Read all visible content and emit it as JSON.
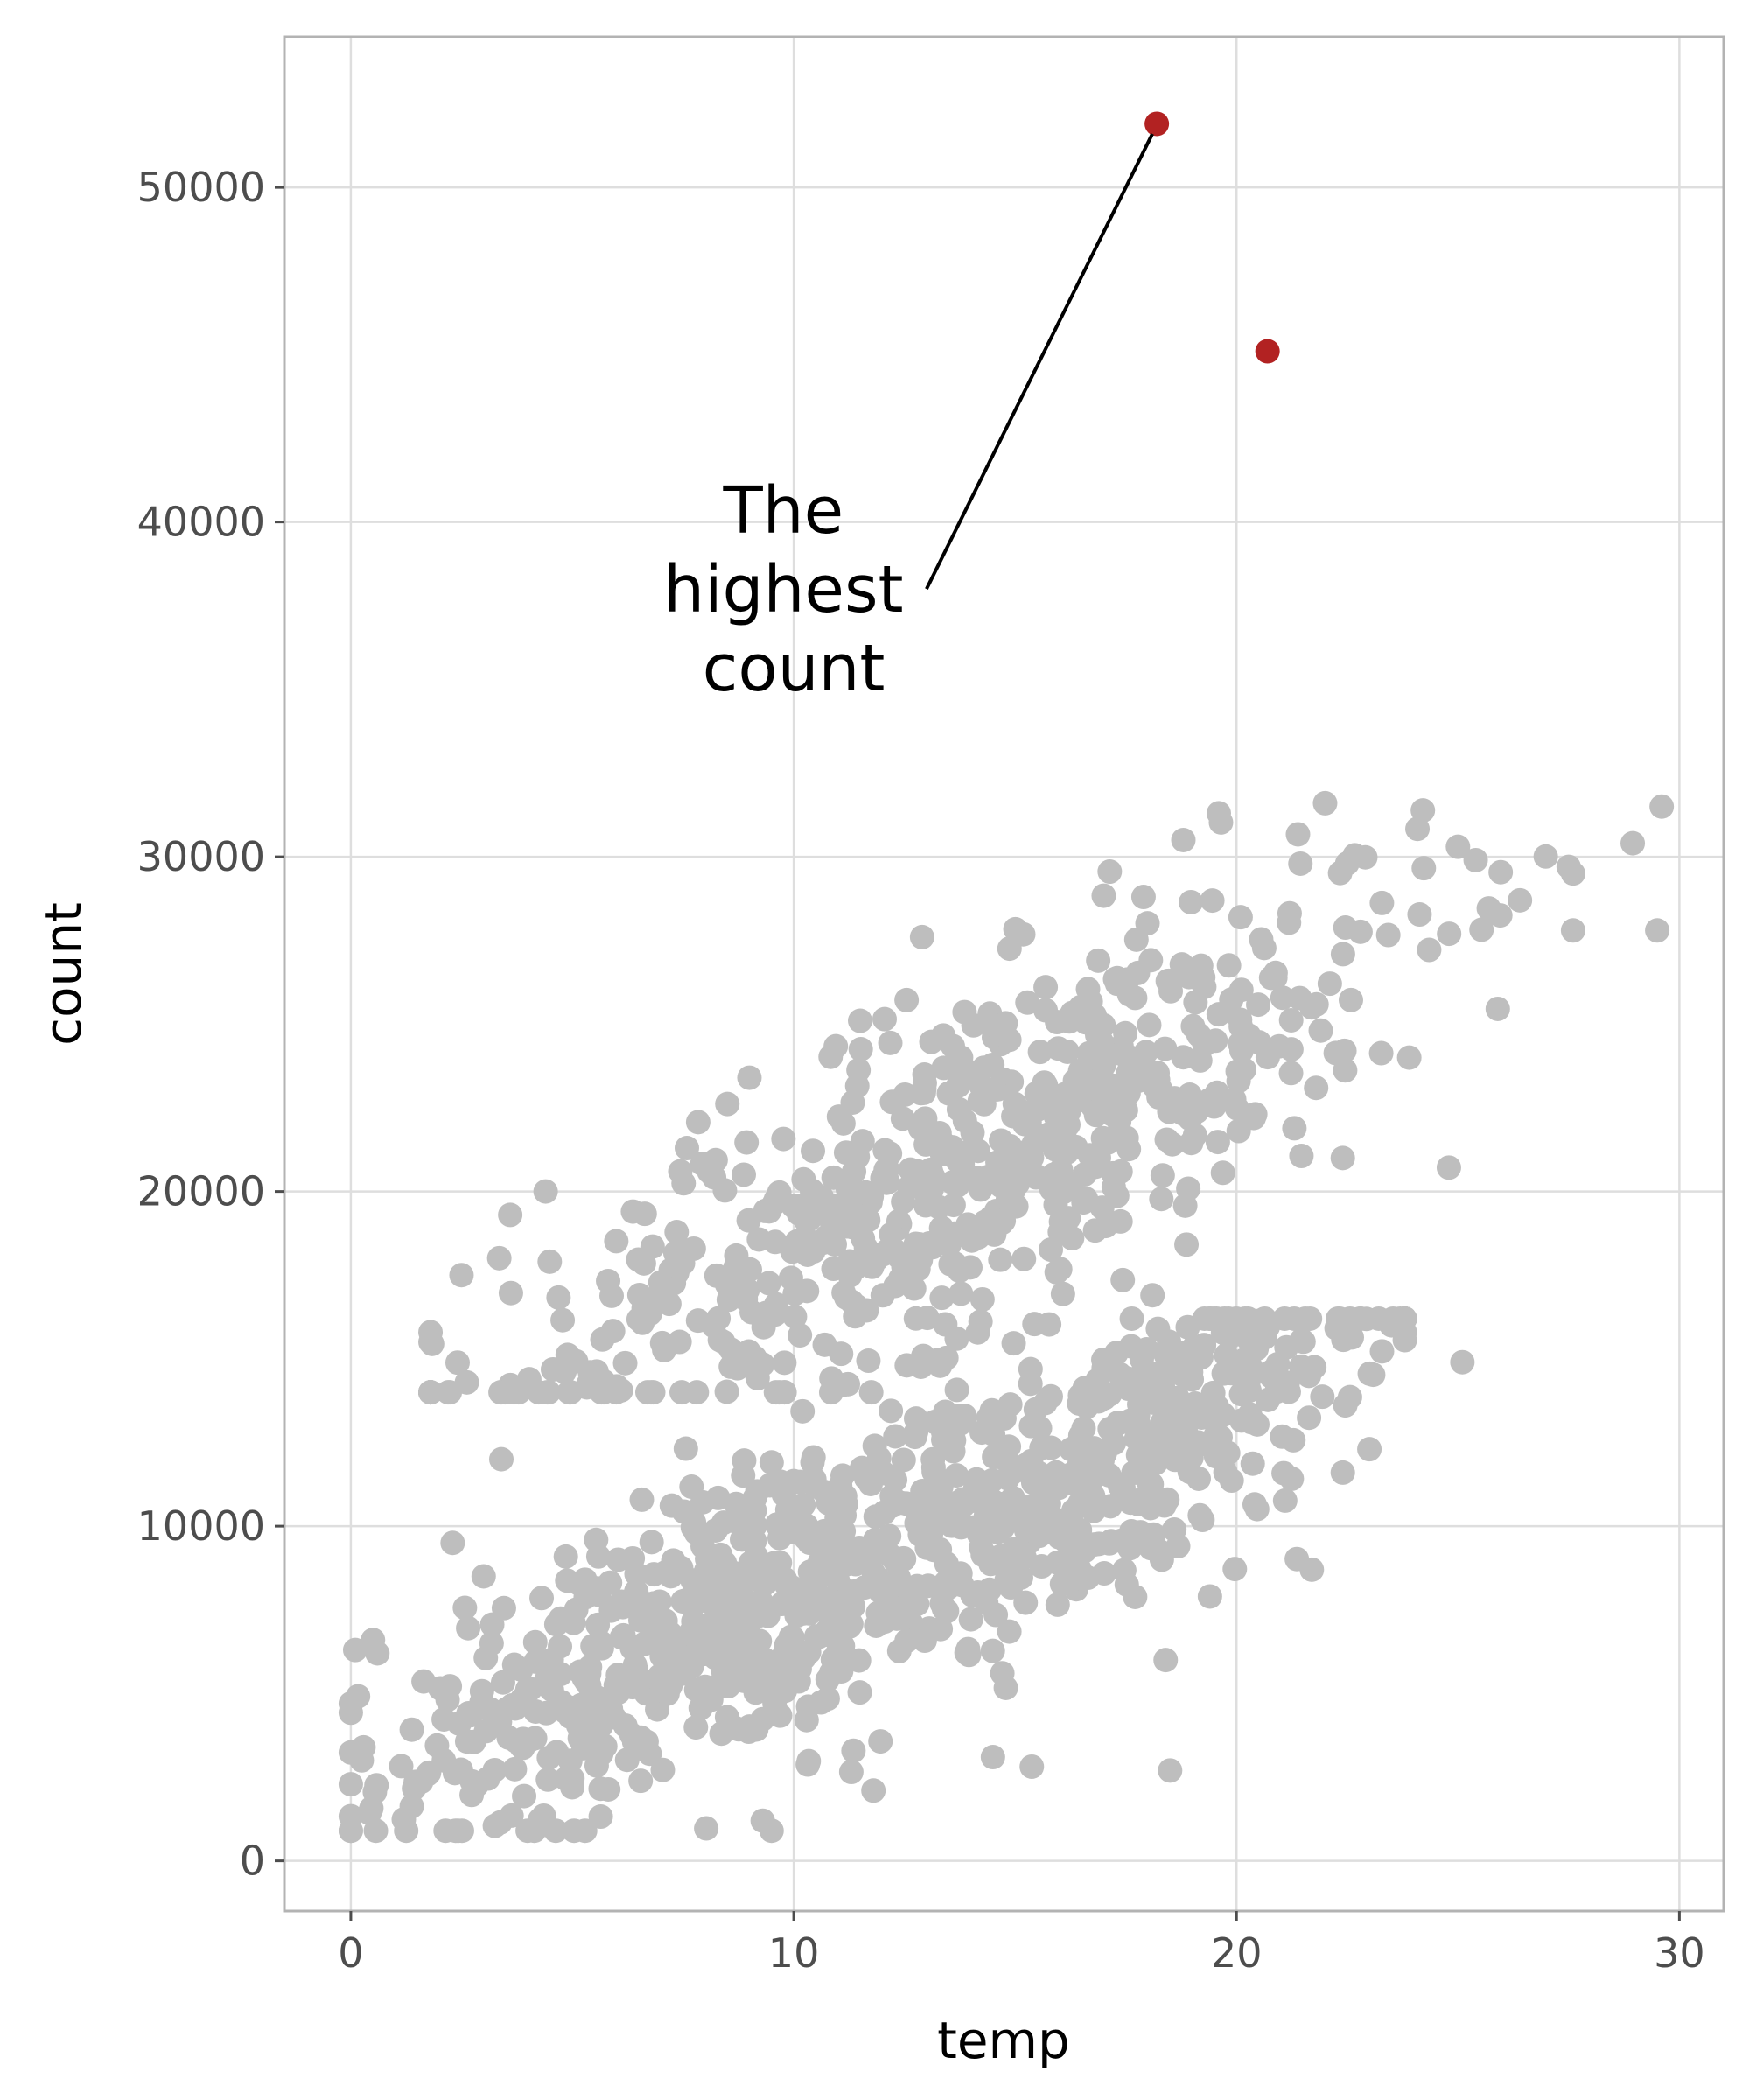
{
  "chart_data": {
    "type": "scatter",
    "title": "",
    "xlabel": "temp",
    "ylabel": "count",
    "xlim": [
      -1.5,
      31
    ],
    "ylim": [
      -1500,
      54500
    ],
    "x_ticks": [
      0,
      10,
      20,
      30
    ],
    "y_ticks": [
      0,
      10000,
      20000,
      30000,
      40000,
      50000
    ],
    "x_tick_labels": [
      "0",
      "10",
      "20",
      "30"
    ],
    "y_tick_labels": [
      "0",
      "10000",
      "20000",
      "30000",
      "40000",
      "50000"
    ],
    "grid": true,
    "legend": "none",
    "colors": {
      "background_points": "#bebebe",
      "highlight_points": "#b22222",
      "grid": "#dedede",
      "panel_border": "#b3b3b3"
    },
    "highlighted_points": [
      {
        "x": 18.2,
        "y": 51900
      },
      {
        "x": 20.7,
        "y": 45100
      }
    ],
    "annotation": {
      "lines": [
        "The",
        "highest",
        "count"
      ],
      "text_anchor": {
        "x": 10.0,
        "y": 38000
      },
      "line_start": {
        "x": 13.0,
        "y": 38000
      },
      "line_end": {
        "x": 18.1,
        "y": 51600
      }
    },
    "point_clusters": [
      {
        "n": 520,
        "x_mean": 8.0,
        "x_sd": 3.6,
        "x_min": 0.0,
        "x_max": 19.5,
        "slope": 600,
        "intercept": 2200,
        "y_sd": 2200,
        "y_min": 900,
        "y_max": 16500
      },
      {
        "n": 420,
        "x_mean": 17.0,
        "x_sd": 3.2,
        "x_min": 9.0,
        "x_max": 23.8,
        "slope": 750,
        "intercept": -1000,
        "y_sd": 2000,
        "y_min": 2600,
        "y_max": 16200
      },
      {
        "n": 620,
        "x_mean": 14.0,
        "x_sd": 5.2,
        "x_min": 1.8,
        "x_max": 29.6,
        "slope": 650,
        "intercept": 11800,
        "y_sd": 2500,
        "y_min": 14000,
        "y_max": 31500
      }
    ],
    "distinct_points": [
      {
        "x": 0.1,
        "y": 6300
      },
      {
        "x": 0.5,
        "y": 6600
      },
      {
        "x": 0.6,
        "y": 6200
      },
      {
        "x": 1.8,
        "y": 15500
      },
      {
        "x": 2.1,
        "y": 3000
      },
      {
        "x": 2.3,
        "y": 9500
      },
      {
        "x": 2.5,
        "y": 17500
      },
      {
        "x": 3.0,
        "y": 8500
      },
      {
        "x": 3.4,
        "y": 12000
      },
      {
        "x": 3.6,
        "y": 19300
      },
      {
        "x": 4.4,
        "y": 20000
      },
      {
        "x": 5.0,
        "y": 2200
      },
      {
        "x": 9.3,
        "y": 1200
      },
      {
        "x": 9.5,
        "y": 900
      },
      {
        "x": 9.0,
        "y": 23400
      },
      {
        "x": 11.8,
        "y": 2100
      },
      {
        "x": 11.5,
        "y": 25100
      },
      {
        "x": 12.9,
        "y": 27600
      },
      {
        "x": 14.5,
        "y": 3100
      },
      {
        "x": 18.5,
        "y": 2700
      },
      {
        "x": 18.4,
        "y": 6000
      },
      {
        "x": 19.4,
        "y": 7900
      },
      {
        "x": 21.7,
        "y": 8700
      },
      {
        "x": 22.4,
        "y": 11600
      },
      {
        "x": 22.4,
        "y": 21000
      },
      {
        "x": 23.0,
        "y": 12300
      },
      {
        "x": 23.5,
        "y": 16000
      },
      {
        "x": 25.1,
        "y": 14900
      },
      {
        "x": 19.6,
        "y": 31300
      },
      {
        "x": 22.0,
        "y": 31600
      },
      {
        "x": 22.5,
        "y": 29800
      },
      {
        "x": 25.0,
        "y": 30300
      },
      {
        "x": 25.4,
        "y": 29900
      },
      {
        "x": 26.4,
        "y": 28700
      },
      {
        "x": 27.5,
        "y": 29700
      },
      {
        "x": 27.6,
        "y": 29500
      },
      {
        "x": 27.6,
        "y": 27800
      },
      {
        "x": 29.5,
        "y": 27800
      },
      {
        "x": 24.8,
        "y": 27700
      },
      {
        "x": 23.9,
        "y": 24000
      },
      {
        "x": 18.8,
        "y": 30500
      },
      {
        "x": 17.9,
        "y": 28800
      }
    ]
  }
}
